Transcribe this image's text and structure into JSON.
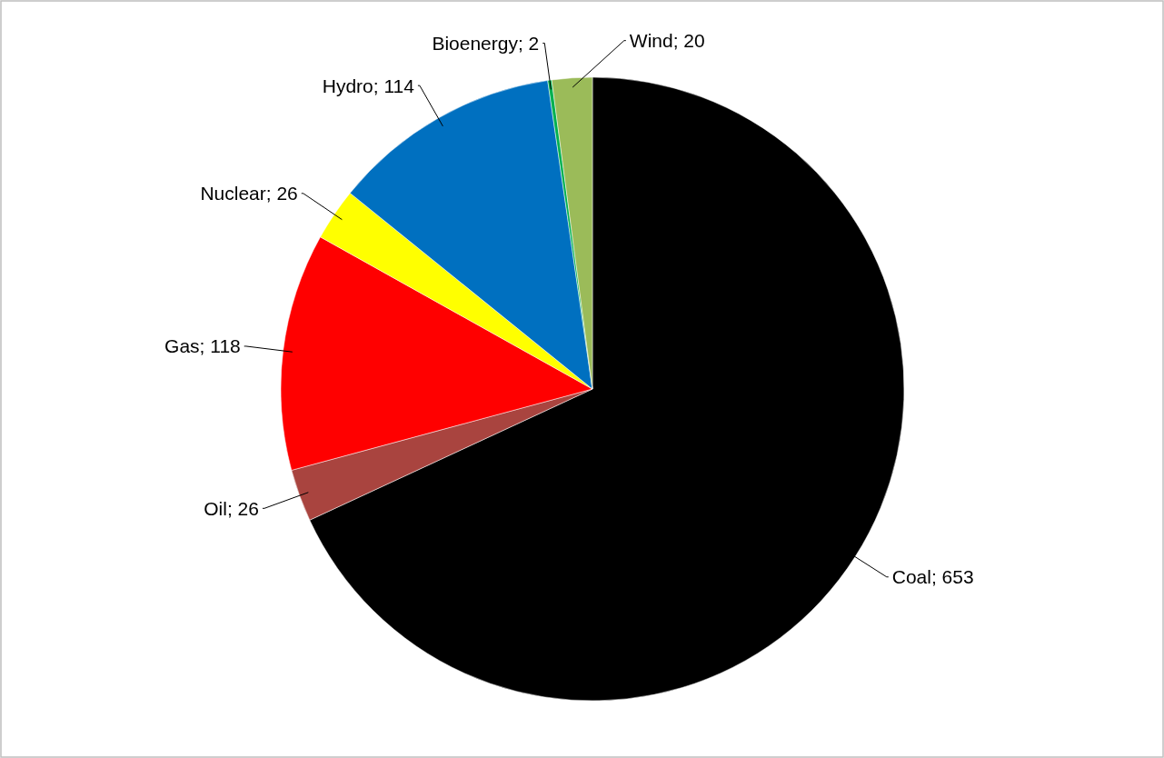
{
  "chart_data": {
    "type": "pie",
    "categories": [
      "Coal",
      "Oil",
      "Gas",
      "Nuclear",
      "Hydro",
      "Bioenergy",
      "Wind"
    ],
    "values": [
      653,
      26,
      118,
      26,
      114,
      2,
      20
    ],
    "colors": [
      "#000000",
      "#a9443f",
      "#ff0000",
      "#ffff00",
      "#0070c0",
      "#00b050",
      "#9bbb59"
    ],
    "value_labels": [
      "; 653",
      "; 26",
      "; 118",
      "; 26",
      "; 114",
      "; 2",
      "; 20"
    ],
    "legend": false
  }
}
